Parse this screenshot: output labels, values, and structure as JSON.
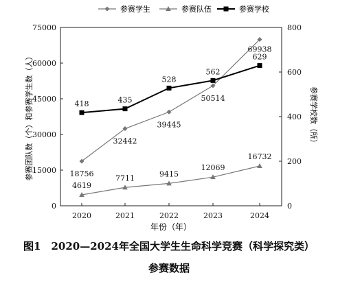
{
  "chart_data": {
    "type": "line",
    "x": [
      "2020",
      "2021",
      "2022",
      "2023",
      "2024"
    ],
    "xlabel": "年份（年）",
    "ylabel": "参赛团队数（个）和参赛学生数（人）",
    "y2label": "参赛学校数（所）",
    "ylim": [
      0,
      75000
    ],
    "yticks": [
      "0",
      "15000",
      "30000",
      "45000",
      "60000",
      "75000"
    ],
    "y2lim": [
      0,
      800
    ],
    "y2ticks": [
      "0",
      "200",
      "400",
      "600",
      "800"
    ],
    "grid": false,
    "legend_position": "top",
    "series": [
      {
        "name": "参赛学生",
        "axis": "left",
        "marker": "diamond",
        "color": "#777777",
        "values": [
          18756,
          32442,
          39445,
          50514,
          69938
        ],
        "labels": [
          "18756",
          "32442",
          "39445",
          "50514",
          "69938"
        ]
      },
      {
        "name": "参赛队伍",
        "axis": "left",
        "marker": "triangle",
        "color": "#777777",
        "values": [
          4619,
          7711,
          9415,
          12069,
          16732
        ],
        "labels": [
          "4619",
          "7711",
          "9415",
          "12069",
          "16732"
        ]
      },
      {
        "name": "参赛学校",
        "axis": "right",
        "marker": "square",
        "color": "#000000",
        "values": [
          418,
          435,
          528,
          562,
          629
        ],
        "labels": [
          "418",
          "435",
          "528",
          "562",
          "629"
        ]
      }
    ]
  },
  "caption": {
    "line1": "图1　2020—2024年全国大学生生命科学竞赛（科学探究类）",
    "line2": "参赛数据"
  }
}
